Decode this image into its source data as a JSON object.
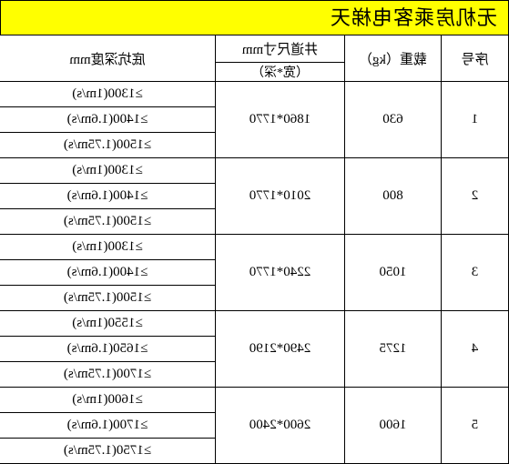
{
  "title": "无机房乘客电梯天",
  "headers": {
    "serial": "序号",
    "load": "载重（kg）",
    "shaft_size": "井道尺寸mm",
    "shaft_size_sub": "（宽*深）",
    "pit_depth": "底坑深度mm"
  },
  "rows": [
    {
      "serial": "1",
      "load": "630",
      "shaft": "1860*1770",
      "depths": [
        "≥1300(1m/s)",
        "≥1400(1.6m/s)",
        "≥1500(1.75m/s)"
      ]
    },
    {
      "serial": "2",
      "load": "800",
      "shaft": "2010*1770",
      "depths": [
        "≥1300(1m/s)",
        "≥1400(1.6m/s)",
        "≥1500(1.75m/s)"
      ]
    },
    {
      "serial": "3",
      "load": "1050",
      "shaft": "2240*1770",
      "depths": [
        "≥1300(1m/s)",
        "≥1400(1.6m/s)",
        "≥1500(1.75m/s)"
      ]
    },
    {
      "serial": "4",
      "load": "1275",
      "shaft": "2490*2190",
      "depths": [
        "≥1550(1m/s)",
        "≥1650(1.6m/s)",
        "≥1700(1.75m/s)"
      ]
    },
    {
      "serial": "5",
      "load": "1600",
      "shaft": "2600*2400",
      "depths": [
        "≥1600(1m/s)",
        "≥1700(1.6m/s)",
        "≥1750(1.75m/s)"
      ]
    }
  ],
  "colors": {
    "title_bg": "#ffff00",
    "border": "#000000",
    "cell_bg": "#ffffff"
  }
}
